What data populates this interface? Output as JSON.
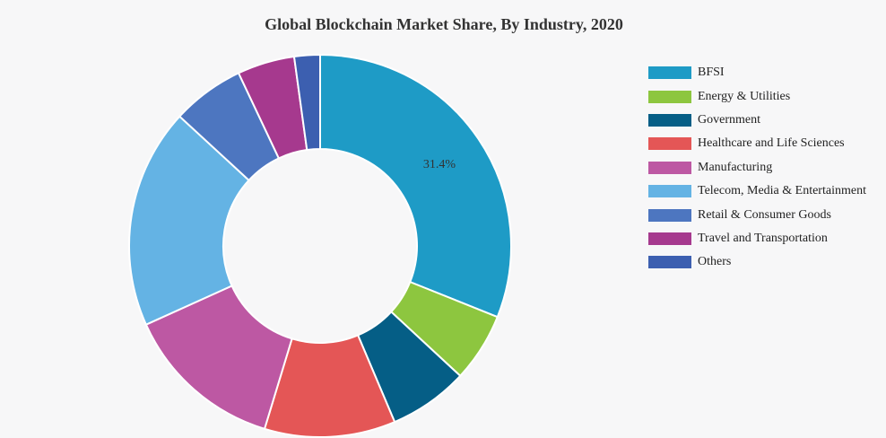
{
  "chart_data": {
    "type": "pie",
    "title": "Global Blockchain Market Share, By Industry, 2020",
    "donut": true,
    "legend_position": "right",
    "categories": [
      "BFSI",
      "Energy & Utilities",
      "Government",
      "Healthcare and Life Sciences",
      "Manufacturing",
      "Telecom, Media & Entertainment",
      "Retail & Consumer Goods",
      "Travel and Transportation",
      "Others"
    ],
    "values": [
      31.4,
      5.9,
      6.8,
      11.2,
      13.7,
      18.8,
      6.2,
      4.9,
      2.2
    ],
    "colors": [
      "#1e9bc6",
      "#8dc63f",
      "#055e86",
      "#e45656",
      "#bd58a3",
      "#64b3e4",
      "#4d76c0",
      "#a6398e",
      "#3c5fb0"
    ],
    "data_labels": [
      "31.4%",
      "",
      "",
      "",
      "",
      "",
      "",
      "",
      ""
    ]
  }
}
